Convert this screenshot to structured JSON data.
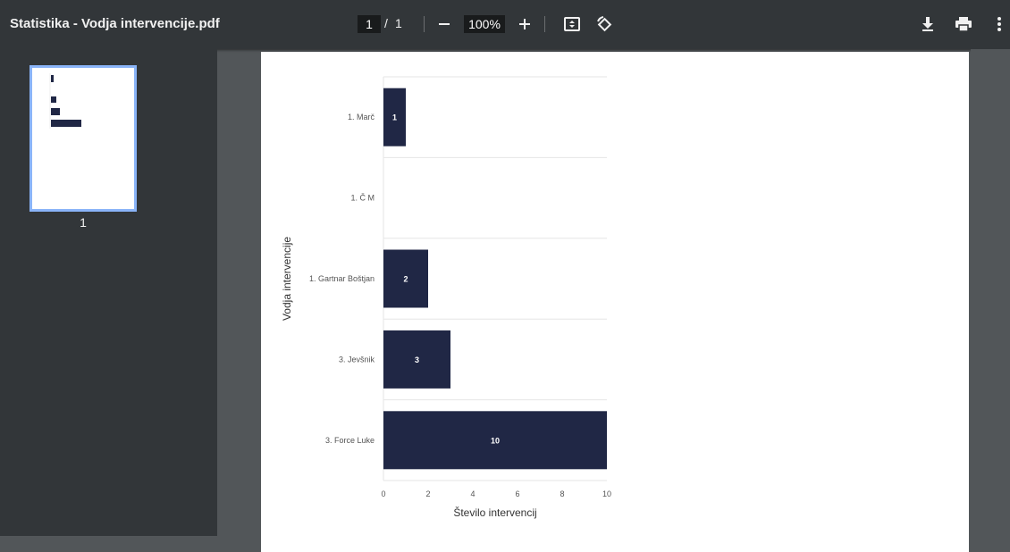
{
  "toolbar": {
    "title": "Statistika - Vodja intervencije.pdf",
    "page_current": "1",
    "page_separator": "/",
    "page_total": "1",
    "zoom": "100%"
  },
  "sidebar": {
    "thumbnail_label": "1"
  },
  "colors": {
    "toolbar_bg": "#323639",
    "viewer_bg": "#525659",
    "bar": "#202745",
    "thumb_border": "#8ab4f8"
  },
  "chart_data": {
    "type": "bar",
    "orientation": "horizontal",
    "categories": [
      "1.  Marč",
      "1. Č M",
      "1. Gartnar Boštjan",
      "3.  Jevšnik",
      "3. Force Luke"
    ],
    "values": [
      1,
      0,
      2,
      3,
      10
    ],
    "data_labels": [
      "1",
      "",
      "2",
      "3",
      "10"
    ],
    "xlabel": "Število intervencij",
    "ylabel": "Vodja intervencije",
    "xlim": [
      0,
      10
    ],
    "xticks": [
      0,
      2,
      4,
      6,
      8,
      10
    ],
    "grid": true,
    "legend": "none"
  }
}
